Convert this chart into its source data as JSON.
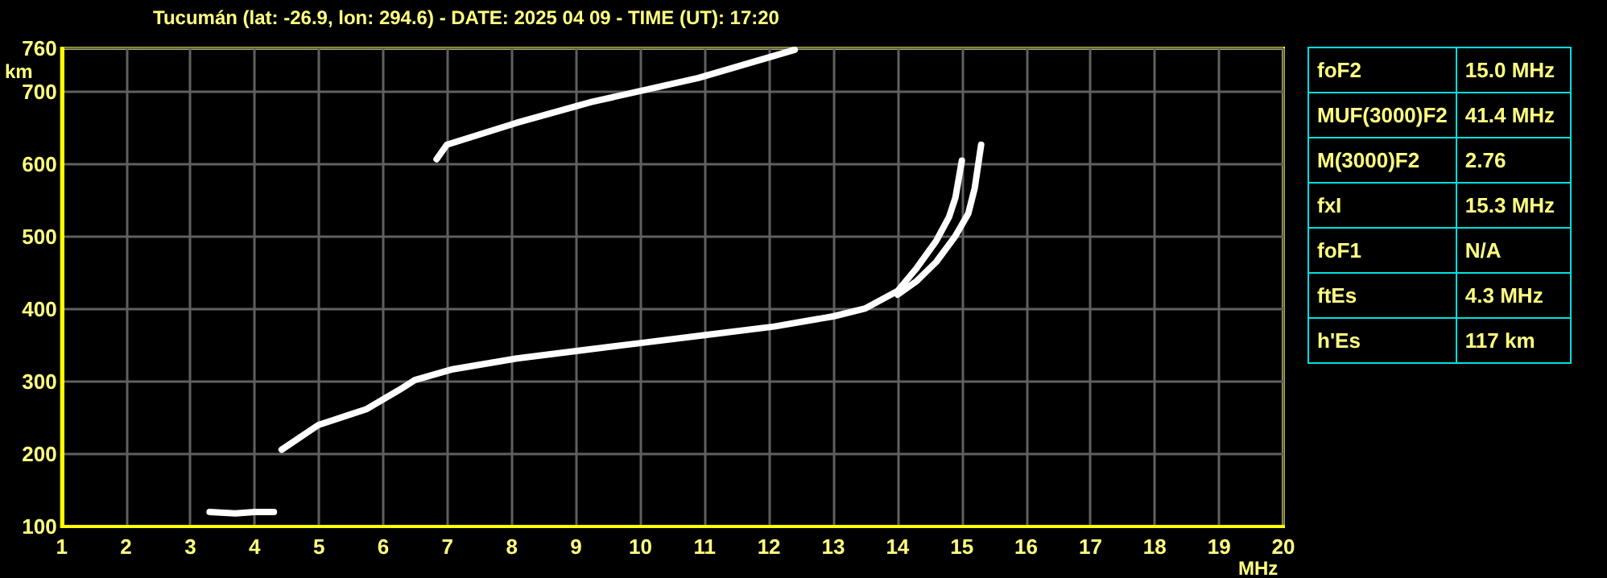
{
  "chart_data": [
    {
      "type": "line",
      "title": "Tucumán (lat: -26.9, lon: 294.6) - DATE: 2025 04 09 - TIME (UT): 17:20",
      "xlabel": "MHz",
      "ylabel": "km",
      "xlim": [
        1,
        20
      ],
      "xticks": [
        1,
        2,
        3,
        4,
        5,
        6,
        7,
        8,
        9,
        10,
        11,
        12,
        13,
        14,
        15,
        16,
        17,
        18,
        19,
        20
      ],
      "ylim": [
        100,
        760
      ],
      "yticks": [
        100,
        200,
        300,
        400,
        500,
        600,
        700,
        760
      ],
      "grid": true,
      "marker": "none",
      "line_style": "solid",
      "series": [
        {
          "color": "#ffffff",
          "x": [
            3.3,
            3.7,
            4.0,
            4.3
          ],
          "values": [
            120,
            118,
            120,
            120
          ]
        },
        {
          "color": "#ffffff",
          "x": [
            4.42,
            4.99,
            5.74,
            6.24,
            6.49,
            7.08,
            8.08,
            9.08,
            10.08,
            11.08,
            12.08,
            13.0,
            13.5,
            14.0,
            14.3,
            14.6,
            14.8,
            14.9,
            15.0
          ],
          "values": [
            206,
            240,
            262,
            288,
            302,
            317,
            332,
            343,
            354,
            365,
            376,
            390,
            401,
            425,
            457,
            494,
            527,
            554,
            605
          ]
        },
        {
          "color": "#ffffff",
          "x": [
            14.0,
            14.3,
            14.6,
            14.9,
            15.1,
            15.2,
            15.3
          ],
          "values": [
            420,
            439,
            465,
            501,
            532,
            567,
            627
          ]
        },
        {
          "color": "#ffffff",
          "x": [
            6.83,
            6.99,
            8.07,
            9.24,
            10.9,
            12.4
          ],
          "values": [
            607,
            627,
            657,
            686,
            719,
            758
          ]
        }
      ]
    },
    {
      "type": "other",
      "annotations": [
        "foF2",
        "15.0 MHz",
        "MUF(3000)F2",
        "41.4 MHz",
        "M(3000)F2",
        "2.76",
        "fxI",
        "15.3 MHz",
        "foF1",
        "N/A",
        "ftEs",
        "4.3 MHz",
        "h'Es",
        "117 km"
      ]
    }
  ]
}
